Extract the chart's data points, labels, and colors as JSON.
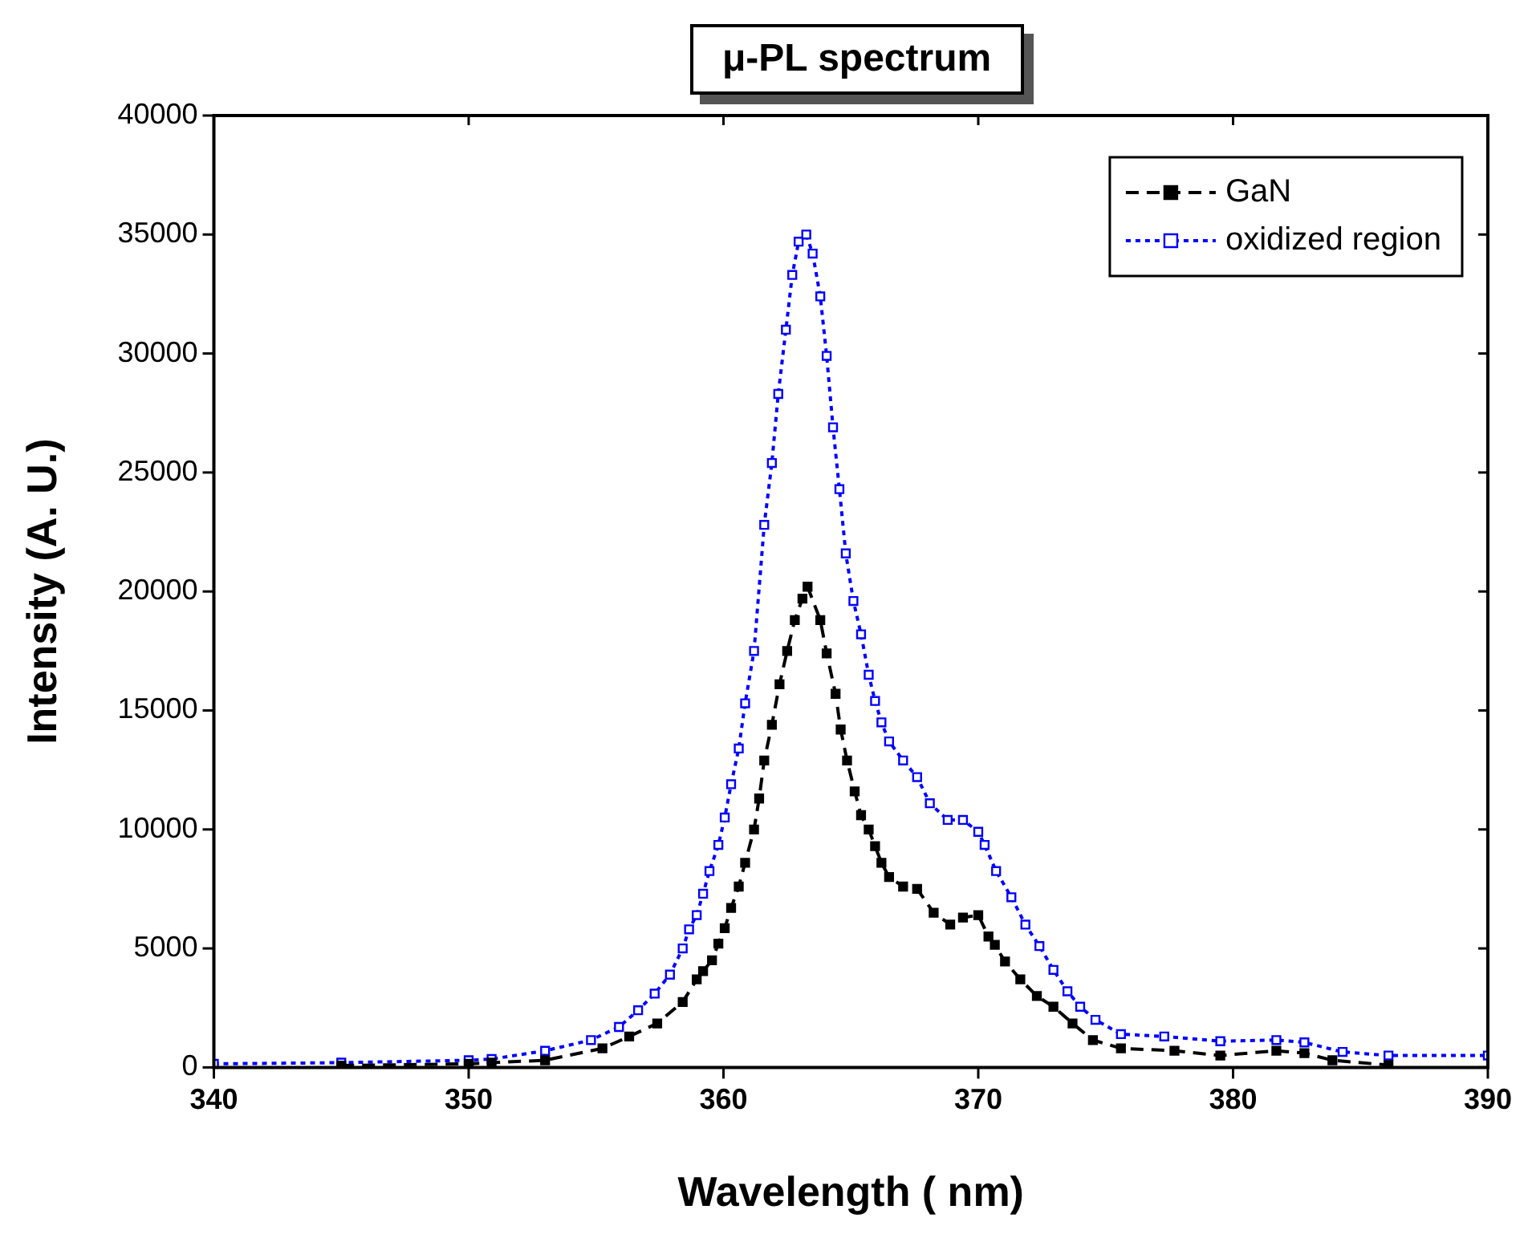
{
  "chart_data": {
    "type": "line",
    "title": "μ-PL spectrum",
    "xlabel": "Wavelength ( nm)",
    "ylabel": "Intensity (A. U.)",
    "xlim": [
      340,
      390
    ],
    "xticks": [
      340,
      350,
      360,
      370,
      380,
      390
    ],
    "ylim": [
      0,
      40000
    ],
    "yticks": [
      0,
      5000,
      10000,
      15000,
      20000,
      25000,
      30000,
      35000,
      40000
    ],
    "grid": false,
    "legend": "top right",
    "marker": "square",
    "series": [
      {
        "name": "GaN",
        "color": "#000000",
        "line_style": "dashed",
        "x": [
          345,
          350,
          350.9,
          353.0,
          355.25,
          356.3,
          357.4,
          358.4,
          358.95,
          359.2,
          359.55,
          359.8,
          360.05,
          360.3,
          360.6,
          360.85,
          361.2,
          361.4,
          361.6,
          361.9,
          362.2,
          362.5,
          362.8,
          363.1,
          363.3,
          363.8,
          364.05,
          364.4,
          364.6,
          364.85,
          365.15,
          365.4,
          365.7,
          365.95,
          366.2,
          366.5,
          367.05,
          367.6,
          368.25,
          368.9,
          369.4,
          370.0,
          370.4,
          370.65,
          371.05,
          371.65,
          372.3,
          372.95,
          373.7,
          374.5,
          375.6,
          377.7,
          379.5,
          381.7,
          382.8,
          383.9,
          386.1
        ],
        "values": [
          80,
          150,
          200,
          300,
          800,
          1300,
          1850,
          2750,
          3700,
          4050,
          4500,
          5200,
          5850,
          6700,
          7600,
          8600,
          10000,
          11300,
          12900,
          14400,
          16100,
          17500,
          18800,
          19700,
          20200,
          18800,
          17400,
          15700,
          14200,
          12900,
          11600,
          10600,
          10000,
          9300,
          8600,
          8000,
          7600,
          7500,
          6500,
          6000,
          6300,
          6400,
          5500,
          5150,
          4450,
          3700,
          3000,
          2550,
          1850,
          1150,
          800,
          700,
          500,
          700,
          600,
          300,
          100
        ]
      },
      {
        "name": "oxidized region",
        "color": "#0000ff",
        "line_style": "dotted",
        "x": [
          340,
          345,
          350,
          350.9,
          353.0,
          354.8,
          355.9,
          356.65,
          357.3,
          357.9,
          358.4,
          358.65,
          358.95,
          359.2,
          359.45,
          359.8,
          360.05,
          360.3,
          360.6,
          360.85,
          361.2,
          361.6,
          361.9,
          362.15,
          362.45,
          362.7,
          362.95,
          363.25,
          363.5,
          363.8,
          364.05,
          364.3,
          364.55,
          364.8,
          365.1,
          365.4,
          365.7,
          365.95,
          366.2,
          366.5,
          367.05,
          367.6,
          368.1,
          368.8,
          369.4,
          370.0,
          370.25,
          370.7,
          371.3,
          371.85,
          372.4,
          372.95,
          373.5,
          374.0,
          374.6,
          375.6,
          377.3,
          379.5,
          381.7,
          382.8,
          384.3,
          386.1,
          390
        ],
        "values": [
          150,
          200,
          300,
          350,
          700,
          1150,
          1700,
          2400,
          3100,
          3900,
          5000,
          5800,
          6400,
          7300,
          8250,
          9350,
          10500,
          11900,
          13400,
          15300,
          17500,
          22800,
          25400,
          28300,
          31000,
          33300,
          34700,
          35000,
          34200,
          32400,
          29900,
          26900,
          24300,
          21600,
          19600,
          18200,
          16500,
          15400,
          14500,
          13700,
          12900,
          12200,
          11100,
          10400,
          10400,
          9900,
          9350,
          8250,
          7150,
          6000,
          5100,
          4100,
          3200,
          2550,
          2000,
          1400,
          1300,
          1100,
          1150,
          1050,
          650,
          500,
          500
        ]
      }
    ]
  }
}
